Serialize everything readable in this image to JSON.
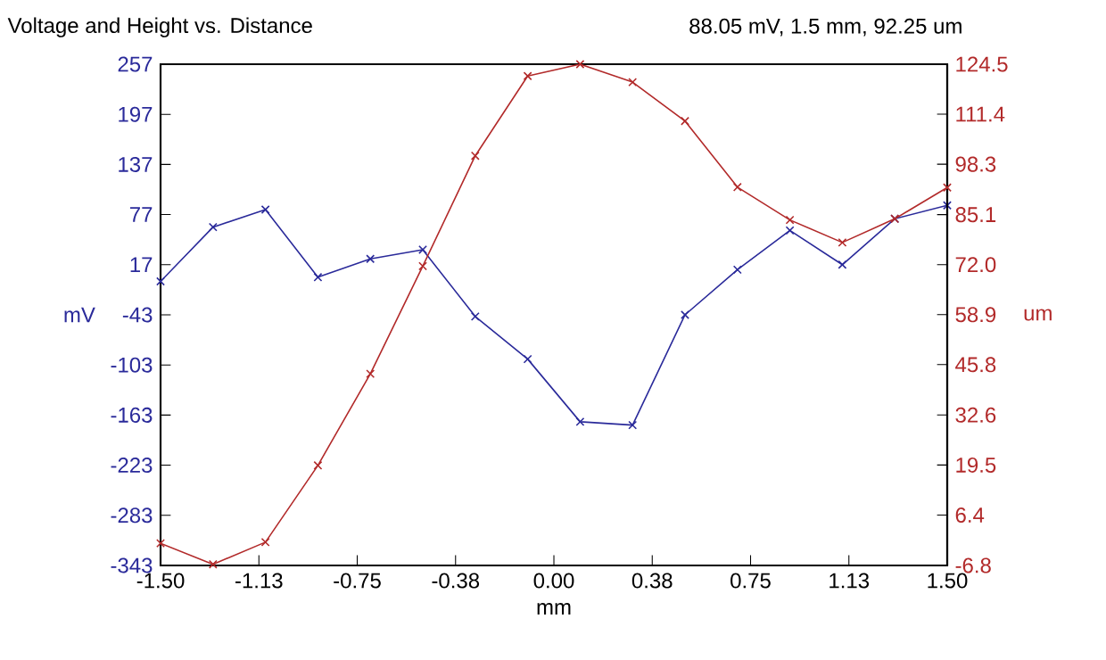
{
  "chart_data": {
    "type": "line",
    "title": "Voltage and Height vs. Distance",
    "annotations": [
      "88.05 mV, 1.5 mm, 92.25 um"
    ],
    "xlabel": "mm",
    "ylabel": "mV",
    "y2label": "um",
    "x": [
      -1.5,
      -1.3,
      -1.1,
      -0.9,
      -0.7,
      -0.5,
      -0.3,
      -0.1,
      0.1,
      0.3,
      0.5,
      0.7,
      0.9,
      1.1,
      1.3,
      1.5
    ],
    "series": [
      {
        "color": "#2a2a9a",
        "values": [
          -3,
          62,
          83,
          2,
          24,
          35,
          -45,
          -96,
          -171,
          -175,
          -43,
          11,
          58,
          17,
          72,
          88
        ]
      },
      {
        "color": "#b22a2a",
        "axis": "y2",
        "values": [
          -1.0,
          -6.5,
          -0.7,
          19.4,
          43.4,
          71.6,
          100.5,
          121.4,
          124.5,
          119.8,
          109.6,
          92.3,
          83.7,
          77.8,
          84.0,
          92.2
        ]
      }
    ],
    "xlim": [
      -1.5,
      1.5
    ],
    "xticks": [
      {
        "value": -1.5,
        "label": "-1.50"
      },
      {
        "value": -1.125,
        "label": "-1.13"
      },
      {
        "value": -0.75,
        "label": "-0.75"
      },
      {
        "value": -0.375,
        "label": "-0.38"
      },
      {
        "value": 0,
        "label": "0.00"
      },
      {
        "value": 0.375,
        "label": "0.38"
      },
      {
        "value": 0.75,
        "label": "0.75"
      },
      {
        "value": 1.125,
        "label": "1.13"
      },
      {
        "value": 1.5,
        "label": "1.50"
      }
    ],
    "ylim": [
      -343,
      257
    ],
    "yticks": [
      -343,
      -283,
      -223,
      -163,
      -103,
      -43,
      17,
      77,
      137,
      197,
      257
    ],
    "y2lim": [
      -6.8,
      124.5
    ],
    "y2ticks": [
      {
        "value": -6.8,
        "label": "-6.8"
      },
      {
        "value": 6.4,
        "label": "6.4"
      },
      {
        "value": 19.5,
        "label": "19.5"
      },
      {
        "value": 32.6,
        "label": "32.6"
      },
      {
        "value": 45.8,
        "label": "45.8"
      },
      {
        "value": 58.9,
        "label": "58.9"
      },
      {
        "value": 72.0,
        "label": "72.0"
      },
      {
        "value": 85.1,
        "label": "85.1"
      },
      {
        "value": 98.3,
        "label": "98.3"
      },
      {
        "value": 111.4,
        "label": "111.4"
      },
      {
        "value": 124.5,
        "label": "124.5"
      }
    ],
    "marker": "cross",
    "line_style": "solid"
  }
}
